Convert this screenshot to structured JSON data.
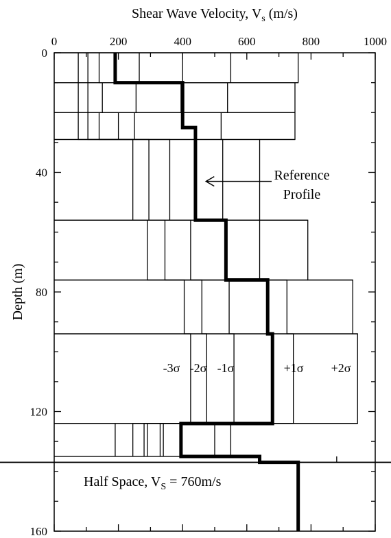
{
  "chart_data": {
    "type": "line",
    "xlabel": "Shear Wave Velocity, V",
    "xlabel_sub": "s",
    "xlabel_unit": " (m/s)",
    "ylabel": "Depth (m)",
    "xlim": [
      0,
      1000
    ],
    "ylim": [
      0,
      160
    ],
    "y_inverted": true,
    "x_axis_position": "top",
    "xticks": [
      0,
      200,
      400,
      600,
      800,
      1000
    ],
    "yticks": [
      0,
      40,
      80,
      120,
      160
    ],
    "grid": false,
    "half_space": {
      "depth": 137,
      "label_prefix": "Half Space, V",
      "label_sub": "S",
      "label_suffix": " = 760m/s",
      "velocity": 760
    },
    "reference_profile": {
      "name": "Reference Profile",
      "annotation_line1": "Reference",
      "annotation_line2": "Profile",
      "arrow_target": {
        "x": 460,
        "y": 43
      },
      "layers": [
        {
          "top": 0,
          "bottom": 10,
          "vs": 190
        },
        {
          "top": 10,
          "bottom": 25,
          "vs": 400
        },
        {
          "top": 25,
          "bottom": 56,
          "vs": 440
        },
        {
          "top": 56,
          "bottom": 76,
          "vs": 535
        },
        {
          "top": 76,
          "bottom": 94,
          "vs": 665
        },
        {
          "top": 94,
          "bottom": 124,
          "vs": 680
        },
        {
          "top": 124,
          "bottom": 135,
          "vs": 395
        },
        {
          "top": 135,
          "bottom": 137,
          "vs": 640
        },
        {
          "top": 137,
          "bottom": 160,
          "vs": 760
        }
      ]
    },
    "sigma_profiles": [
      {
        "name": "-3σ",
        "label": "-3σ",
        "layers": [
          {
            "top": 0,
            "bottom": 10,
            "vs": 75
          },
          {
            "top": 10,
            "bottom": 20,
            "vs": 75
          },
          {
            "top": 20,
            "bottom": 29,
            "vs": 75
          },
          {
            "top": 29,
            "bottom": 56,
            "vs": 245
          },
          {
            "top": 56,
            "bottom": 76,
            "vs": 290
          },
          {
            "top": 76,
            "bottom": 94,
            "vs": 405
          },
          {
            "top": 94,
            "bottom": 124,
            "vs": 425
          },
          {
            "top": 124,
            "bottom": 135,
            "vs": 245
          }
        ]
      },
      {
        "name": "-2σ",
        "label": "-2σ",
        "layers": [
          {
            "top": 0,
            "bottom": 10,
            "vs": 105
          },
          {
            "top": 10,
            "bottom": 20,
            "vs": 105
          },
          {
            "top": 20,
            "bottom": 29,
            "vs": 105
          },
          {
            "top": 29,
            "bottom": 56,
            "vs": 295
          },
          {
            "top": 56,
            "bottom": 76,
            "vs": 345
          },
          {
            "top": 76,
            "bottom": 94,
            "vs": 460
          },
          {
            "top": 94,
            "bottom": 124,
            "vs": 475
          },
          {
            "top": 124,
            "bottom": 135,
            "vs": 280
          }
        ]
      },
      {
        "name": "-1σ",
        "label": "-1σ",
        "layers": [
          {
            "top": 0,
            "bottom": 10,
            "vs": 140
          },
          {
            "top": 10,
            "bottom": 20,
            "vs": 150
          },
          {
            "top": 20,
            "bottom": 29,
            "vs": 140
          },
          {
            "top": 29,
            "bottom": 56,
            "vs": 360
          },
          {
            "top": 56,
            "bottom": 76,
            "vs": 425
          },
          {
            "top": 76,
            "bottom": 94,
            "vs": 545
          },
          {
            "top": 94,
            "bottom": 124,
            "vs": 560
          },
          {
            "top": 124,
            "bottom": 135,
            "vs": 330
          }
        ]
      },
      {
        "name": "+1σ",
        "label": "+1σ",
        "layers": [
          {
            "top": 0,
            "bottom": 10,
            "vs": 400
          },
          {
            "top": 10,
            "bottom": 20,
            "vs": 540
          },
          {
            "top": 20,
            "bottom": 29,
            "vs": 520
          },
          {
            "top": 29,
            "bottom": 56,
            "vs": 525
          },
          {
            "top": 56,
            "bottom": 76,
            "vs": 640
          },
          {
            "top": 76,
            "bottom": 94,
            "vs": 725
          },
          {
            "top": 94,
            "bottom": 124,
            "vs": 745
          },
          {
            "top": 124,
            "bottom": 135,
            "vs": 500
          }
        ]
      },
      {
        "name": "+2σ",
        "label": "+2σ",
        "layers": [
          {
            "top": 0,
            "bottom": 10,
            "vs": 760
          },
          {
            "top": 10,
            "bottom": 20,
            "vs": 750
          },
          {
            "top": 20,
            "bottom": 29,
            "vs": 750
          },
          {
            "top": 29,
            "bottom": 56,
            "vs": 640
          },
          {
            "top": 56,
            "bottom": 76,
            "vs": 790
          },
          {
            "top": 76,
            "bottom": 94,
            "vs": 930
          },
          {
            "top": 94,
            "bottom": 124,
            "vs": 945
          },
          {
            "top": 124,
            "bottom": 135,
            "vs": 550
          }
        ]
      }
    ],
    "extra_segments": [
      {
        "top": 0,
        "bottom": 10,
        "vs": [
          190,
          265,
          550
        ]
      },
      {
        "top": 10,
        "bottom": 20,
        "vs": [
          255,
          395
        ]
      },
      {
        "top": 20,
        "bottom": 29,
        "vs": [
          200,
          250
        ]
      },
      {
        "top": 124,
        "bottom": 135,
        "vs": [
          190,
          290,
          340
        ]
      },
      {
        "top": 135,
        "bottom": 137,
        "vs": [
          880
        ]
      }
    ]
  }
}
